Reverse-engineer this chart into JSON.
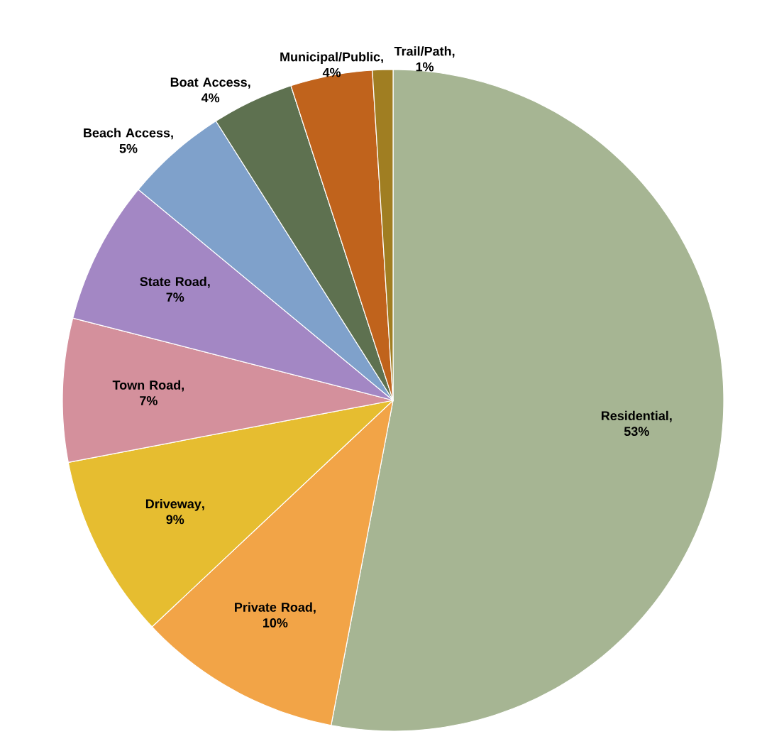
{
  "chart_data": {
    "type": "pie",
    "categories": [
      "Residential",
      "Private Road",
      "Driveway",
      "Town Road",
      "State Road",
      "Beach Access",
      "Boat Access",
      "Municipal/Public",
      "Trail/Path"
    ],
    "values": [
      53,
      10,
      9,
      7,
      7,
      5,
      4,
      4,
      1
    ],
    "value_labels": [
      ", 53%",
      ", 10%",
      ", 9%",
      ", 7%",
      ", 7%",
      ", 5%",
      ", 4%",
      ", 4%",
      ", 1%"
    ],
    "colors": [
      "#a6b593",
      "#f2a447",
      "#e6bd30",
      "#d4909c",
      "#a387c4",
      "#7fa1cb",
      "#5e7150",
      "#c0631c",
      "#a07e22"
    ]
  }
}
